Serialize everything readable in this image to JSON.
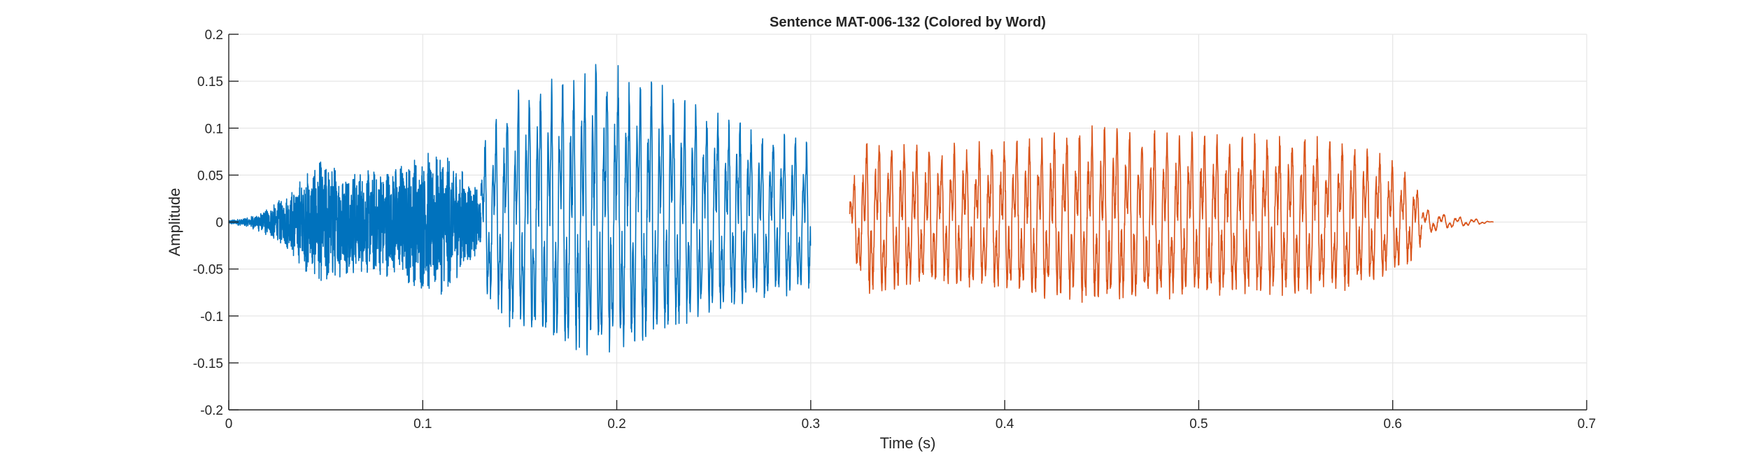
{
  "chart_data": {
    "type": "line",
    "title": "Sentence MAT-006-132 (Colored by Word)",
    "xlabel": "Time (s)",
    "ylabel": "Amplitude",
    "xlim": [
      0,
      0.7
    ],
    "ylim": [
      -0.2,
      0.2
    ],
    "xticks": [
      0,
      0.1,
      0.2,
      0.3,
      0.4,
      0.5,
      0.6,
      0.7
    ],
    "yticks": [
      -0.2,
      -0.15,
      -0.1,
      -0.05,
      0,
      0.05,
      0.1,
      0.15,
      0.2
    ],
    "xtick_labels": [
      "0",
      "0.1",
      "0.2",
      "0.3",
      "0.4",
      "0.5",
      "0.6",
      "0.7"
    ],
    "ytick_labels": [
      "-0.2",
      "-0.15",
      "-0.1",
      "-0.05",
      "0",
      "0.05",
      "0.1",
      "0.15",
      "0.2"
    ],
    "grid": true,
    "series": [
      {
        "color": "#0072BD",
        "segments": [
          {
            "t_start": 0.0,
            "t_end": 0.13,
            "kind": "noise",
            "envelope_t": [
              0.0,
              0.01,
              0.02,
              0.03,
              0.04,
              0.05,
              0.06,
              0.07,
              0.08,
              0.09,
              0.1,
              0.11,
              0.12,
              0.13
            ],
            "envelope_amp": [
              0.002,
              0.005,
              0.015,
              0.03,
              0.055,
              0.07,
              0.06,
              0.055,
              0.06,
              0.065,
              0.075,
              0.08,
              0.06,
              0.03
            ]
          },
          {
            "t_start": 0.13,
            "t_end": 0.3,
            "kind": "voiced",
            "pitch_hz": 175,
            "envelope_t": [
              0.13,
              0.15,
              0.17,
              0.19,
              0.21,
              0.23,
              0.25,
              0.27,
              0.29,
              0.3
            ],
            "envelope_amp": [
              0.09,
              0.16,
              0.17,
              0.185,
              0.17,
              0.15,
              0.13,
              0.11,
              0.1,
              0.09
            ]
          }
        ]
      },
      {
        "color": "#D95319",
        "segments": [
          {
            "t_start": 0.32,
            "t_end": 0.615,
            "kind": "voiced",
            "pitch_hz": 155,
            "envelope_t": [
              0.32,
              0.33,
              0.36,
              0.4,
              0.44,
              0.48,
              0.52,
              0.56,
              0.59,
              0.61,
              0.615
            ],
            "envelope_amp": [
              0.04,
              0.1,
              0.085,
              0.095,
              0.11,
              0.105,
              0.1,
              0.1,
              0.085,
              0.055,
              0.03
            ]
          },
          {
            "t_start": 0.615,
            "t_end": 0.652,
            "kind": "decay",
            "pitch_hz": 120,
            "envelope_t": [
              0.615,
              0.625,
              0.635,
              0.645,
              0.652
            ],
            "envelope_amp": [
              0.018,
              0.01,
              0.006,
              0.003,
              0.0
            ]
          }
        ]
      }
    ]
  }
}
